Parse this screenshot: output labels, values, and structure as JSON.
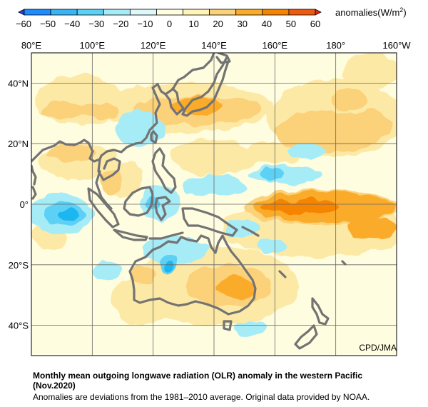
{
  "colorbar": {
    "ticks": [
      "−60",
      "−50",
      "−40",
      "−30",
      "−20",
      "−10",
      "0",
      "10",
      "20",
      "30",
      "40",
      "50",
      "60"
    ],
    "unit_label": "anomalies(W/m",
    "unit_sup": "2",
    "unit_close": ")",
    "colors": [
      "#2a3ee0",
      "#1e8cff",
      "#3ab4f5",
      "#5cd0f5",
      "#a6ecf7",
      "#ddf7fb",
      "#fffde0",
      "#fff3b8",
      "#fbd179",
      "#fbab2a",
      "#f58400",
      "#ee5a0e",
      "#e0281a"
    ]
  },
  "map": {
    "lon_labels": [
      "80°E",
      "100°E",
      "120°E",
      "140°E",
      "160°E",
      "180°",
      "160°W"
    ],
    "lat_labels": [
      "40°N",
      "20°N",
      "0°",
      "20°S",
      "40°S"
    ],
    "source_label": "CPD/JMA",
    "colors": {
      "background": "#fffde0",
      "weak_positive": "#fde9a6",
      "positive": "#fbd179",
      "strong_positive": "#fbab2a",
      "very_strong_positive": "#f58400",
      "weak_negative": "#a6ecf7",
      "negative": "#5cd0f5",
      "strong_negative": "#1ab6f0",
      "coast": "#737373",
      "grid": "#666666"
    }
  },
  "caption": {
    "title": "Monthly mean outgoing longwave radiation (OLR) anomaly in the western Pacific (Nov.2020)",
    "note": "Anomalies are deviations from the 1981–2010 average. Original data provided by NOAA."
  }
}
